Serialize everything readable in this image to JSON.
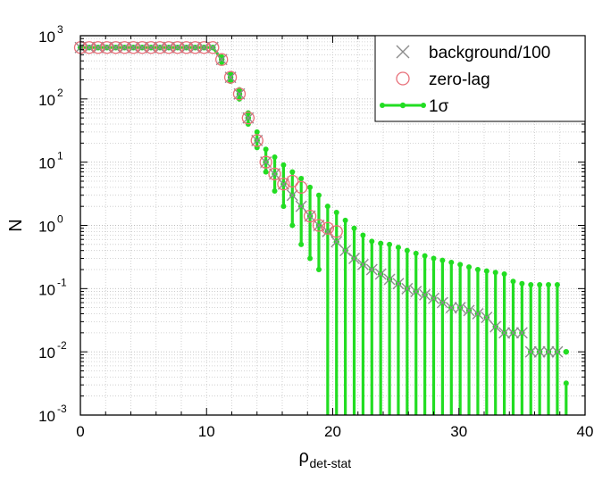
{
  "chart_data": {
    "type": "scatter",
    "title": "",
    "xlabel_main": "ρ",
    "xlabel_sub": "det-stat",
    "ylabel": "N",
    "yscale": "log",
    "xlim": [
      0,
      40
    ],
    "ylim": [
      0.001,
      1000
    ],
    "grid": true,
    "legend_position": "top-right",
    "x_ticks": [
      "0",
      "10",
      "20",
      "30",
      "40"
    ],
    "y_ticks": [
      {
        "base": "10",
        "exp": "-3",
        "value": 0.001
      },
      {
        "base": "10",
        "exp": "-2",
        "value": 0.01
      },
      {
        "base": "10",
        "exp": "-1",
        "value": 0.1
      },
      {
        "base": "10",
        "exp": "0",
        "value": 1
      },
      {
        "base": "10",
        "exp": "1",
        "value": 10
      },
      {
        "base": "10",
        "exp": "2",
        "value": 100
      },
      {
        "base": "10",
        "exp": "3",
        "value": 1000
      }
    ],
    "series": [
      {
        "name": "background/100",
        "marker": "x",
        "color": "#8c8c8c",
        "x": [
          0,
          0.7,
          1.4,
          2.1,
          2.8,
          3.5,
          4.2,
          4.9,
          5.6,
          6.3,
          7.0,
          7.7,
          8.4,
          9.1,
          9.8,
          10.5,
          11.2,
          11.9,
          12.6,
          13.3,
          14.0,
          14.7,
          15.4,
          16.1,
          16.8,
          17.5,
          18.2,
          18.9,
          19.6,
          20.3,
          21.0,
          21.7,
          22.4,
          23.1,
          23.8,
          24.5,
          25.2,
          25.9,
          26.6,
          27.3,
          28.0,
          28.7,
          29.4,
          30.1,
          30.8,
          31.5,
          32.2,
          32.9,
          33.6,
          34.3,
          35.0,
          35.7,
          36.4,
          37.1,
          37.8
        ],
        "y": [
          650,
          650,
          650,
          650,
          650,
          650,
          650,
          650,
          650,
          650,
          650,
          650,
          650,
          650,
          650,
          650,
          420,
          220,
          120,
          50,
          22,
          10,
          6.5,
          4.5,
          3,
          2,
          1.4,
          1,
          0.8,
          0.55,
          0.4,
          0.3,
          0.24,
          0.2,
          0.17,
          0.14,
          0.12,
          0.1,
          0.09,
          0.08,
          0.07,
          0.06,
          0.05,
          0.05,
          0.045,
          0.04,
          0.035,
          0.025,
          0.02,
          0.02,
          0.02,
          0.01,
          0.01,
          0.01,
          0.01
        ]
      },
      {
        "name": "zero-lag",
        "marker": "circle",
        "color": "#e8707a",
        "x": [
          0,
          0.7,
          1.4,
          2.1,
          2.8,
          3.5,
          4.2,
          4.9,
          5.6,
          6.3,
          7.0,
          7.7,
          8.4,
          9.1,
          9.8,
          10.5,
          11.2,
          11.9,
          12.6,
          13.3,
          14.0,
          14.7,
          15.4,
          16.1,
          16.8,
          17.5,
          18.2,
          18.9,
          19.6,
          20.3
        ],
        "y": [
          650,
          650,
          650,
          650,
          650,
          650,
          650,
          650,
          650,
          650,
          650,
          650,
          650,
          650,
          650,
          650,
          420,
          220,
          120,
          50,
          22,
          10,
          6.5,
          4.5,
          5,
          4,
          1.4,
          1,
          0.9,
          0.8
        ]
      },
      {
        "name": "1σ",
        "marker": "dot-errorbar",
        "color": "#22dd22",
        "x": [
          0,
          0.7,
          1.4,
          2.1,
          2.8,
          3.5,
          4.2,
          4.9,
          5.6,
          6.3,
          7.0,
          7.7,
          8.4,
          9.1,
          9.8,
          10.5,
          11.2,
          11.9,
          12.6,
          13.3,
          14.0,
          14.7,
          15.4,
          16.1,
          16.8,
          17.5,
          18.2,
          18.9,
          19.6,
          20.3,
          21.0,
          21.7,
          22.4,
          23.1,
          23.8,
          24.5,
          25.2,
          25.9,
          26.6,
          27.3,
          28.0,
          28.7,
          29.4,
          30.1,
          30.8,
          31.5,
          32.2,
          32.9,
          33.6,
          34.3,
          35.0,
          35.7,
          36.4,
          37.1,
          37.8,
          38.5
        ],
        "y": [
          650,
          650,
          650,
          650,
          650,
          650,
          650,
          650,
          650,
          650,
          650,
          650,
          650,
          650,
          650,
          650,
          420,
          220,
          120,
          50,
          22,
          10,
          6.5,
          4.5,
          3,
          2,
          1.4,
          1,
          0.8,
          0.55,
          0.4,
          0.3,
          0.24,
          0.2,
          0.17,
          0.14,
          0.12,
          0.1,
          0.09,
          0.08,
          0.07,
          0.06,
          0.05,
          0.05,
          0.045,
          0.04,
          0.035,
          0.025,
          0.02,
          0.02,
          0.02,
          0.01,
          0.01,
          0.01,
          0.01,
          0.01
        ],
        "y_low": [
          650,
          650,
          650,
          650,
          650,
          650,
          650,
          650,
          650,
          650,
          650,
          650,
          650,
          650,
          650,
          650,
          380,
          190,
          100,
          40,
          17,
          7,
          3.5,
          2,
          1,
          0.5,
          0.3,
          0.2,
          0.001,
          0.001,
          0.001,
          0.001,
          0.001,
          0.001,
          0.001,
          0.001,
          0.001,
          0.001,
          0.001,
          0.001,
          0.001,
          0.001,
          0.001,
          0.001,
          0.001,
          0.001,
          0.001,
          0.001,
          0.001,
          0.001,
          0.001,
          0.001,
          0.001,
          0.001,
          0.001,
          0.001
        ],
        "y_high": [
          650,
          650,
          650,
          650,
          650,
          650,
          650,
          650,
          650,
          650,
          650,
          650,
          650,
          650,
          650,
          650,
          460,
          250,
          140,
          60,
          30,
          16,
          12,
          9,
          7,
          5.5,
          4,
          3,
          2,
          1.6,
          1.2,
          0.9,
          0.7,
          0.56,
          0.52,
          0.5,
          0.45,
          0.4,
          0.36,
          0.33,
          0.3,
          0.28,
          0.26,
          0.24,
          0.22,
          0.2,
          0.19,
          0.18,
          0.17,
          0.13,
          0.12,
          0.115,
          0.115,
          0.115,
          0.115,
          0.0032
        ]
      }
    ]
  }
}
